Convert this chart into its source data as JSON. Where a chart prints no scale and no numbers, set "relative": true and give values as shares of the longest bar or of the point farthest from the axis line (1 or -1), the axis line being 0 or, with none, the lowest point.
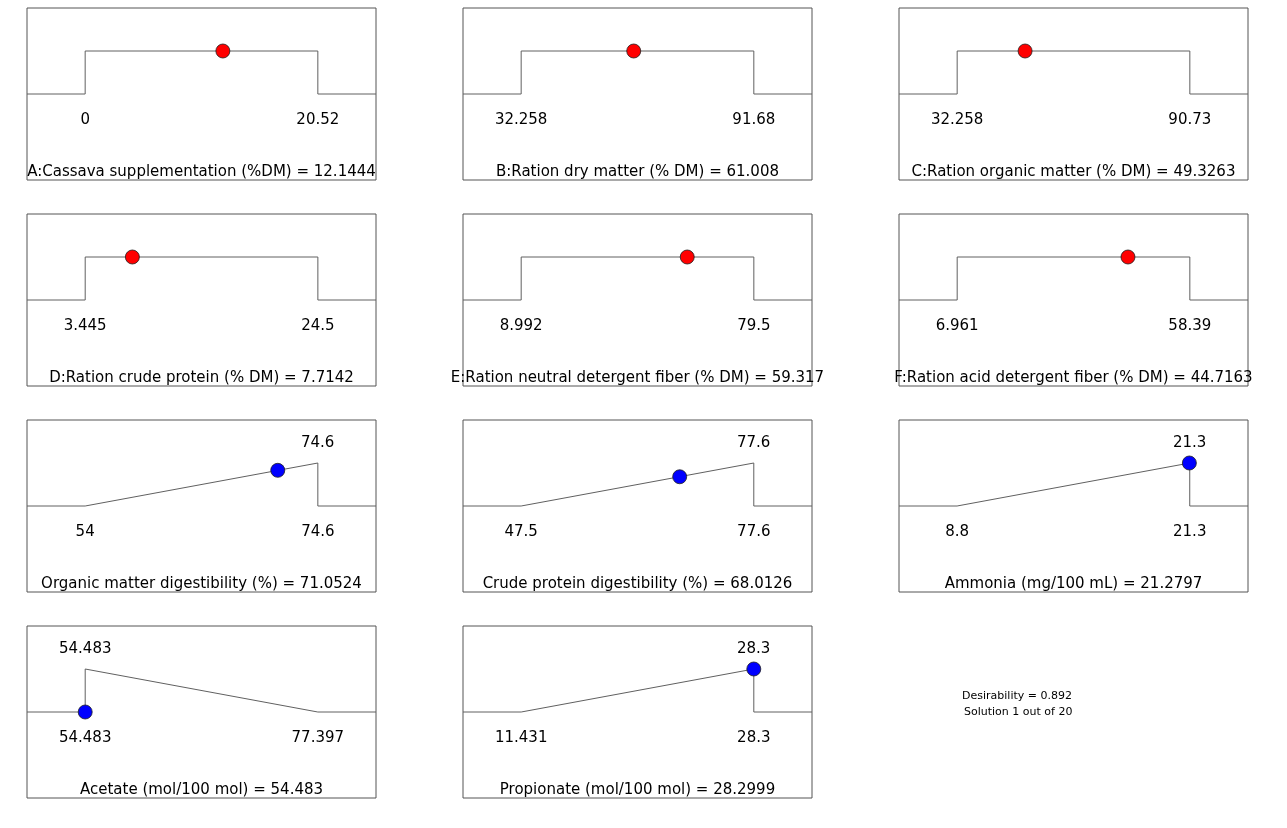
{
  "chart_data": [
    {
      "type": "line",
      "relative": true,
      "xlabel": "A:Cassava supplementation (%DM) = 12.1444",
      "xlim": [
        -5.13,
        25.65
      ],
      "xticks": [
        0,
        20.52
      ],
      "series": [
        {
          "type": "line",
          "color": "#606060",
          "x": [
            -5.13,
            0,
            0,
            20.52,
            20.52,
            25.65
          ],
          "values": [
            0,
            0,
            1,
            1,
            0,
            0
          ]
        },
        {
          "type": "scatter",
          "marker": "circle",
          "color": "#ff0000",
          "x": [
            12.1444
          ],
          "values": [
            1
          ]
        }
      ]
    },
    {
      "type": "line",
      "relative": true,
      "xlabel": "B:Ration dry matter (% DM) = 61.008",
      "xlim": [
        17.4,
        106.54
      ],
      "xticks": [
        32.258,
        91.68
      ],
      "series": [
        {
          "type": "line",
          "color": "#606060",
          "x": [
            17.4,
            32.258,
            32.258,
            91.68,
            91.68,
            106.54
          ],
          "values": [
            0,
            0,
            1,
            1,
            0,
            0
          ]
        },
        {
          "type": "scatter",
          "marker": "circle",
          "color": "#ff0000",
          "x": [
            61.008
          ],
          "values": [
            1
          ]
        }
      ]
    },
    {
      "type": "line",
      "relative": true,
      "xlabel": "C:Ration organic matter (% DM) = 49.3263",
      "xlim": [
        17.64,
        105.35
      ],
      "xticks": [
        32.258,
        90.73
      ],
      "series": [
        {
          "type": "line",
          "color": "#606060",
          "x": [
            17.64,
            32.258,
            32.258,
            90.73,
            90.73,
            105.35
          ],
          "values": [
            0,
            0,
            1,
            1,
            0,
            0
          ]
        },
        {
          "type": "scatter",
          "marker": "circle",
          "color": "#ff0000",
          "x": [
            49.3263
          ],
          "values": [
            1
          ]
        }
      ]
    },
    {
      "type": "line",
      "relative": true,
      "xlabel": "D:Ration crude protein (% DM) = 7.7142",
      "xlim": [
        -1.82,
        29.76
      ],
      "xticks": [
        3.445,
        24.5
      ],
      "series": [
        {
          "type": "line",
          "color": "#606060",
          "x": [
            -1.82,
            3.445,
            3.445,
            24.5,
            24.5,
            29.76
          ],
          "values": [
            0,
            0,
            1,
            1,
            0,
            0
          ]
        },
        {
          "type": "scatter",
          "marker": "circle",
          "color": "#ff0000",
          "x": [
            7.7142
          ],
          "values": [
            1
          ]
        }
      ]
    },
    {
      "type": "line",
      "relative": true,
      "xlabel": "E:Ration neutral detergent fiber (% DM) = 59.317",
      "xlim": [
        -8.64,
        97.13
      ],
      "xticks": [
        8.992,
        79.5
      ],
      "series": [
        {
          "type": "line",
          "color": "#606060",
          "x": [
            -8.64,
            8.992,
            8.992,
            79.5,
            79.5,
            97.13
          ],
          "values": [
            0,
            0,
            1,
            1,
            0,
            0
          ]
        },
        {
          "type": "scatter",
          "marker": "circle",
          "color": "#ff0000",
          "x": [
            59.317
          ],
          "values": [
            1
          ]
        }
      ]
    },
    {
      "type": "line",
      "relative": true,
      "xlabel": "F:Ration acid detergent fiber (% DM) = 44.7163",
      "xlim": [
        -5.9,
        71.25
      ],
      "xticks": [
        6.961,
        58.39
      ],
      "series": [
        {
          "type": "line",
          "color": "#606060",
          "x": [
            -5.9,
            6.961,
            6.961,
            58.39,
            58.39,
            71.25
          ],
          "values": [
            0,
            0,
            1,
            1,
            0,
            0
          ]
        },
        {
          "type": "scatter",
          "marker": "circle",
          "color": "#ff0000",
          "x": [
            44.7163
          ],
          "values": [
            1
          ]
        }
      ]
    },
    {
      "type": "line",
      "relative": true,
      "xlabel": "Organic matter digestibility (%) = 71.0524",
      "xlim": [
        48.85,
        79.75
      ],
      "xticks": [
        54,
        74.6
      ],
      "annotations": [
        {
          "text": "74.6",
          "x": 74.6,
          "y": 1
        }
      ],
      "series": [
        {
          "type": "line",
          "color": "#606060",
          "x": [
            48.85,
            54,
            74.6,
            74.6,
            79.75
          ],
          "values": [
            0,
            0,
            1,
            0,
            0
          ]
        },
        {
          "type": "scatter",
          "marker": "circle",
          "color": "#0000ff",
          "x": [
            71.0524
          ],
          "values": [
            0.83
          ]
        }
      ]
    },
    {
      "type": "line",
      "relative": true,
      "xlabel": "Crude protein digestibility (%) = 68.0126",
      "xlim": [
        39.98,
        85.13
      ],
      "xticks": [
        47.5,
        77.6
      ],
      "annotations": [
        {
          "text": "77.6",
          "x": 77.6,
          "y": 1
        }
      ],
      "series": [
        {
          "type": "line",
          "color": "#606060",
          "x": [
            39.98,
            47.5,
            77.6,
            77.6,
            85.13
          ],
          "values": [
            0,
            0,
            1,
            0,
            0
          ]
        },
        {
          "type": "scatter",
          "marker": "circle",
          "color": "#0000ff",
          "x": [
            68.0126
          ],
          "values": [
            0.68
          ]
        }
      ]
    },
    {
      "type": "line",
      "relative": true,
      "xlabel": "Ammonia (mg/100 mL) = 21.2797",
      "xlim": [
        5.68,
        24.43
      ],
      "xticks": [
        8.8,
        21.3
      ],
      "annotations": [
        {
          "text": "21.3",
          "x": 21.3,
          "y": 1
        }
      ],
      "series": [
        {
          "type": "line",
          "color": "#606060",
          "x": [
            5.68,
            8.8,
            21.3,
            21.3,
            24.43
          ],
          "values": [
            0,
            0,
            1,
            0,
            0
          ]
        },
        {
          "type": "scatter",
          "marker": "circle",
          "color": "#0000ff",
          "x": [
            21.2797
          ],
          "values": [
            1
          ]
        }
      ]
    },
    {
      "type": "line",
      "relative": true,
      "xlabel": "Acetate (mol/100 mol) = 54.483",
      "xlim": [
        48.75,
        83.13
      ],
      "xticks": [
        54.483,
        77.397
      ],
      "annotations": [
        {
          "text": "54.483",
          "x": 54.483,
          "y": 1
        }
      ],
      "series": [
        {
          "type": "line",
          "color": "#606060",
          "x": [
            48.75,
            54.483,
            54.483,
            77.397,
            83.13
          ],
          "values": [
            0,
            0,
            1,
            0,
            0
          ]
        },
        {
          "type": "scatter",
          "marker": "circle",
          "color": "#0000ff",
          "x": [
            54.483
          ],
          "values": [
            0
          ]
        }
      ]
    },
    {
      "type": "line",
      "relative": true,
      "xlabel": "Propionate (mol/100 mol) = 28.2999",
      "xlim": [
        7.21,
        32.52
      ],
      "xticks": [
        11.431,
        28.3
      ],
      "annotations": [
        {
          "text": "28.3",
          "x": 28.3,
          "y": 1
        }
      ],
      "series": [
        {
          "type": "line",
          "color": "#606060",
          "x": [
            7.21,
            11.431,
            28.3,
            28.3,
            32.52
          ],
          "values": [
            0,
            0,
            1,
            0,
            0
          ]
        },
        {
          "type": "scatter",
          "marker": "circle",
          "color": "#0000ff",
          "x": [
            28.2999
          ],
          "values": [
            1
          ]
        }
      ]
    },
    {
      "type": "other",
      "annotations": [
        "Desirability = 0.892",
        "Solution 1 out of 20"
      ]
    }
  ]
}
